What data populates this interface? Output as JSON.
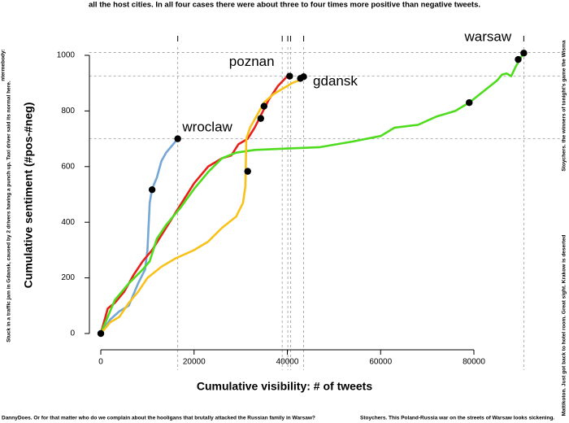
{
  "page_text": {
    "top": "all the host cities. In all four cases there were about three to four times more positive than negative tweets.",
    "left_outer": "ntermebody:",
    "left": "Stuck in a traffic jam in Gdansk, caused by 2 drivers having a punch up. Taxi driver said its normal here.",
    "right_top": "Stoychers. the winners of tonight's game the Wisma",
    "right_bottom": "Mattikoton. Just got back to hotel room. Great sight. Krakow is deserted",
    "bottom_left": "DannyDoes. Or for that matter who do we complain about the hooligans that brutally attacked the Russian family in Warsaw?",
    "bottom_right": "Stoychers. This Poland-Russia war on the streets of Warsaw looks sickening."
  },
  "chart_data": {
    "type": "line",
    "x_label": "Cumulative visibility: # of tweets",
    "y_label": "Cumulative sentiment (#pos-#neg)",
    "xlim": [
      -2500,
      93500
    ],
    "ylim": [
      -20,
      1040
    ],
    "xticks": [
      0,
      20000,
      40000,
      60000,
      80000
    ],
    "yticks": [
      0,
      200,
      400,
      600,
      800,
      1000
    ],
    "series": [
      {
        "name": "wroclaw",
        "color": "#74a7d6",
        "x": [
          0,
          2000,
          4000,
          6000,
          8000,
          9500,
          10000,
          10500,
          11000,
          12000,
          13000,
          14000,
          15000,
          16500
        ],
        "values": [
          0,
          50,
          80,
          100,
          180,
          230,
          300,
          470,
          520,
          560,
          620,
          650,
          670,
          700
        ]
      },
      {
        "name": "poznan",
        "color": "#e8201c",
        "x": [
          0,
          1500,
          3000,
          5000,
          7000,
          9000,
          11000,
          14000,
          17000,
          20000,
          23000,
          26000,
          28000,
          29500,
          31500,
          33000,
          34500,
          36000,
          38000,
          40000,
          40500
        ],
        "values": [
          0,
          90,
          110,
          150,
          210,
          260,
          300,
          380,
          460,
          540,
          600,
          630,
          640,
          680,
          700,
          740,
          790,
          840,
          890,
          925,
          925
        ]
      },
      {
        "name": "warsaw",
        "color": "#4fdc1e",
        "x": [
          0,
          3000,
          6000,
          9000,
          10500,
          12000,
          14000,
          17000,
          20000,
          23000,
          26000,
          29000,
          33000,
          40000,
          47000,
          54000,
          60000,
          63000,
          68000,
          72000,
          76000,
          79000,
          82000,
          85000,
          86000,
          87000,
          88000,
          89000,
          90000,
          90700
        ],
        "values": [
          0,
          120,
          180,
          230,
          260,
          340,
          390,
          450,
          520,
          580,
          630,
          650,
          660,
          665,
          670,
          690,
          710,
          740,
          750,
          780,
          800,
          830,
          870,
          910,
          930,
          935,
          925,
          960,
          990,
          1010
        ]
      },
      {
        "name": "gdansk",
        "color": "#f9c21a",
        "x": [
          0,
          2000,
          4000,
          6000,
          8000,
          10000,
          13000,
          16000,
          20000,
          23000,
          26000,
          29000,
          30500,
          31000,
          31200,
          32000,
          33000,
          34000,
          35000,
          37000,
          39000,
          41000,
          42500,
          43500
        ],
        "values": [
          0,
          40,
          60,
          110,
          150,
          200,
          240,
          270,
          300,
          330,
          380,
          420,
          470,
          530,
          700,
          740,
          770,
          800,
          830,
          860,
          880,
          900,
          910,
          920
        ]
      }
    ],
    "highlights": {
      "x": [
        0,
        11000,
        16500,
        31500,
        34300,
        35000,
        40500,
        42800,
        43500,
        79000,
        89500,
        90700
      ],
      "values": [
        0,
        517,
        700,
        583,
        773,
        817,
        925,
        917,
        923,
        830,
        985,
        1008
      ]
    },
    "annotations": [
      {
        "text": "wroclaw",
        "x": 17500,
        "y": 740
      },
      {
        "text": "poznan",
        "x": 27500,
        "y": 975
      },
      {
        "text": "gdansk",
        "x": 45500,
        "y": 905
      },
      {
        "text": "warsaw",
        "x": 78000,
        "y": 1065
      }
    ],
    "reference_x": [
      16500,
      38900,
      40100,
      40700,
      43500,
      90700
    ],
    "reference_y": [
      1010,
      925,
      700
    ]
  }
}
